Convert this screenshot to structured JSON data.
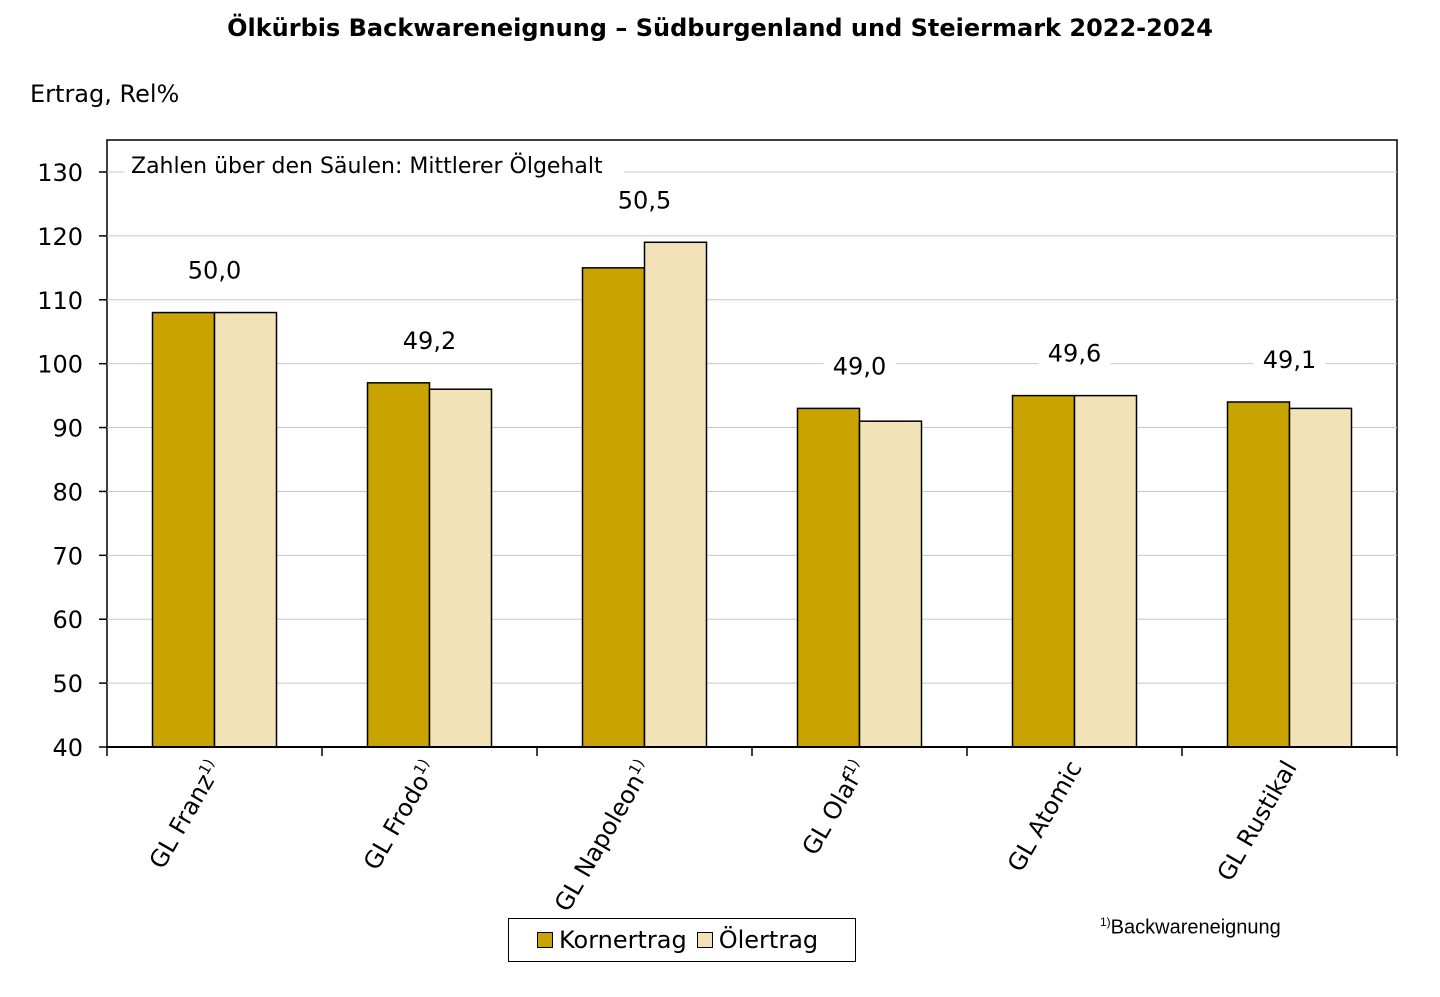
{
  "chart_data": {
    "type": "bar",
    "title": "Ölkürbis Backwareneignung – Südburgenland und Steiermark 2022-2024",
    "ylabel": "Ertrag, Rel%",
    "annotation": "Zahlen über den Säulen: Mittlerer Ölgehalt",
    "ylim": [
      40,
      130
    ],
    "yticks": [
      40,
      50,
      60,
      70,
      80,
      90,
      100,
      110,
      120,
      130
    ],
    "grid": true,
    "categories": [
      {
        "name": "GL Franz",
        "sup": "1)"
      },
      {
        "name": "GL Frodo",
        "sup": "1)"
      },
      {
        "name": "GL Napoleon",
        "sup": "1)"
      },
      {
        "name": "GL Olaf",
        "sup": "1)"
      },
      {
        "name": "GL Atomic",
        "sup": ""
      },
      {
        "name": "GL Rustikal",
        "sup": ""
      }
    ],
    "series": [
      {
        "name": "Kornertrag",
        "color": "#C9A400",
        "values": [
          108,
          97,
          115,
          93,
          95,
          94
        ]
      },
      {
        "name": "Ölertrag",
        "color": "#F1E2B8",
        "values": [
          108,
          96,
          119,
          91,
          95,
          93
        ]
      }
    ],
    "oil_content_labels": [
      "50,0",
      "49,2",
      "50,5",
      "49,0",
      "49,6",
      "49,1"
    ],
    "legend_position": "bottom-center"
  },
  "footnote": {
    "sup": "1)",
    "text": "Backwareneignung"
  }
}
